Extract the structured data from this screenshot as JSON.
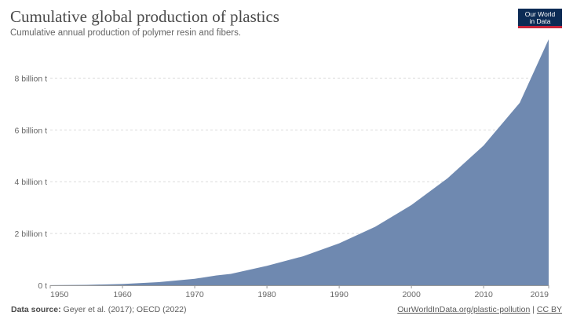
{
  "header": {
    "title": "Cumulative global production of plastics",
    "subtitle": "Cumulative annual production of polymer resin and fibers."
  },
  "logo": {
    "line1": "Our World",
    "line2": "in Data"
  },
  "footer": {
    "source_label": "Data source:",
    "source_text": "Geyer et al. (2017); OECD (2022)",
    "link_text": "OurWorldInData.org/plastic-pollution",
    "separator": "|",
    "license": "CC BY"
  },
  "colors": {
    "area": "#6f89b0",
    "grid": "#dcdcdc",
    "axis": "#999999",
    "text": "#666666"
  },
  "chart_data": {
    "type": "area",
    "title": "Cumulative global production of plastics",
    "subtitle": "Cumulative annual production of polymer resin and fibers.",
    "xlabel": "",
    "ylabel": "",
    "xlim": [
      1950,
      2019
    ],
    "ylim": [
      0,
      9500000000
    ],
    "x_ticks": [
      1950,
      1960,
      1970,
      1980,
      1990,
      2000,
      2010,
      2019
    ],
    "y_ticks": [
      0,
      2000000000,
      4000000000,
      6000000000,
      8000000000
    ],
    "y_tick_labels": [
      "0 t",
      "2 billion t",
      "4 billion t",
      "6 billion t",
      "8 billion t"
    ],
    "grid": {
      "horizontal": true,
      "vertical": false
    },
    "series": [
      {
        "x": [
          1950,
          1955,
          1960,
          1965,
          1970,
          1973,
          1975,
          1980,
          1985,
          1990,
          1995,
          2000,
          2005,
          2010,
          2015,
          2019
        ],
        "y": [
          2000000,
          15000000,
          50000000,
          120000000,
          250000000,
          380000000,
          440000000,
          750000000,
          1120000000,
          1620000000,
          2260000000,
          3100000000,
          4130000000,
          5400000000,
          7050000000,
          9500000000
        ]
      }
    ]
  }
}
